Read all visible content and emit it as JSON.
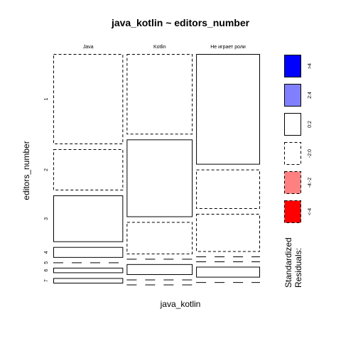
{
  "chart_data": {
    "type": "mosaic",
    "title": "java_kotlin ~ editors_number",
    "xlabel": "java_kotlin",
    "ylabel": "editors_number",
    "columns": [
      "Java",
      "Kotlin",
      "Не играет роли"
    ],
    "column_proportions": [
      0.35,
      0.33,
      0.32
    ],
    "rows": [
      "1",
      "2",
      "3",
      "4",
      "5",
      "6",
      "7"
    ],
    "cells": [
      [
        {
          "value": 0.4425,
          "residual_class": "-2:0"
        },
        {
          "value": 0.2023,
          "residual_class": "-2:0"
        },
        {
          "value": 0.2287,
          "residual_class": "0:2"
        },
        {
          "value": 0.0528,
          "residual_class": "0:2"
        },
        {
          "value": 0.0,
          "residual_class": "-2:0"
        },
        {
          "value": 0.0264,
          "residual_class": "0:2"
        },
        {
          "value": 0.0264,
          "residual_class": "0:2"
        }
      ],
      [
        {
          "value": 0.3948,
          "residual_class": "-2:0"
        },
        {
          "value": 0.3806,
          "residual_class": "0:2"
        },
        {
          "value": 0.1578,
          "residual_class": "-2:0"
        },
        {
          "value": 0.0,
          "residual_class": "-2:0"
        },
        {
          "value": 0.0528,
          "residual_class": "0:2"
        },
        {
          "value": 0.0,
          "residual_class": "-2:0"
        },
        {
          "value": 0.0,
          "residual_class": "-2:0"
        }
      ],
      [
        {
          "value": 0.5423,
          "residual_class": "0:2"
        },
        {
          "value": 0.1929,
          "residual_class": "-2:0"
        },
        {
          "value": 0.1863,
          "residual_class": "-2:0"
        },
        {
          "value": 0.0,
          "residual_class": "-2:0"
        },
        {
          "value": 0.0,
          "residual_class": "-2:0"
        },
        {
          "value": 0.0528,
          "residual_class": "0:2"
        },
        {
          "value": 0.0,
          "residual_class": "-2:0"
        }
      ]
    ],
    "legend": {
      "title_line1": "Standardized",
      "title_line2": "Residuals:",
      "placement": "right",
      "entries": [
        {
          "label": ">4",
          "fill": "#0000ff",
          "dashed": false
        },
        {
          "label": "2:4",
          "fill": "#8080ff",
          "dashed": false
        },
        {
          "label": "0:2",
          "fill": "#ffffff",
          "dashed": false
        },
        {
          "label": "-2:0",
          "fill": "#ffffff",
          "dashed": true
        },
        {
          "label": "-4:-2",
          "fill": "#ff8080",
          "dashed": true
        },
        {
          "label": "<-4",
          "fill": "#ff0000",
          "dashed": true
        }
      ]
    }
  }
}
